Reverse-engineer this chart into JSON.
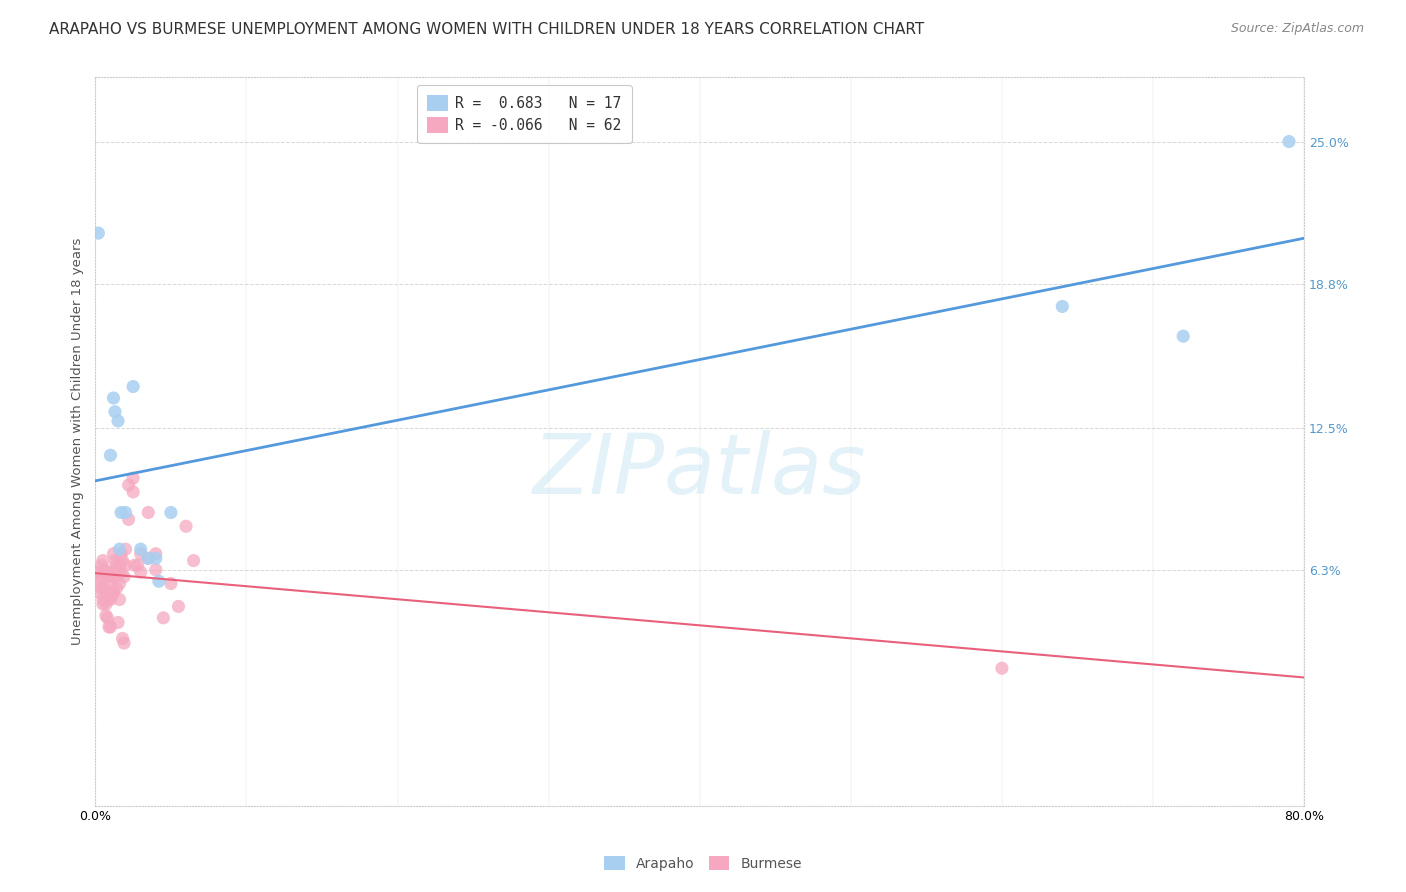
{
  "title": "ARAPAHO VS BURMESE UNEMPLOYMENT AMONG WOMEN WITH CHILDREN UNDER 18 YEARS CORRELATION CHART",
  "source": "Source: ZipAtlas.com",
  "ylabel": "Unemployment Among Women with Children Under 18 years",
  "xlim": [
    0.0,
    0.8
  ],
  "ylim": [
    -0.04,
    0.278
  ],
  "yticks": [
    0.063,
    0.125,
    0.188,
    0.25
  ],
  "ytick_labels": [
    "6.3%",
    "12.5%",
    "18.8%",
    "25.0%"
  ],
  "legend_line1": "R =  0.683   N = 17",
  "legend_line2": "R = -0.066   N = 62",
  "arapaho_color": "#a8cff0",
  "burmese_color": "#f5a8c0",
  "arapaho_line_color": "#5599dd",
  "burmese_line_color": "#e8607a",
  "watermark": "ZIPatlas",
  "arapaho_points": [
    [
      0.002,
      0.21
    ],
    [
      0.01,
      0.113
    ],
    [
      0.012,
      0.138
    ],
    [
      0.013,
      0.132
    ],
    [
      0.015,
      0.128
    ],
    [
      0.016,
      0.072
    ],
    [
      0.017,
      0.088
    ],
    [
      0.02,
      0.088
    ],
    [
      0.025,
      0.143
    ],
    [
      0.03,
      0.072
    ],
    [
      0.035,
      0.068
    ],
    [
      0.04,
      0.068
    ],
    [
      0.042,
      0.058
    ],
    [
      0.05,
      0.088
    ],
    [
      0.64,
      0.178
    ],
    [
      0.72,
      0.165
    ],
    [
      0.79,
      0.25
    ]
  ],
  "burmese_points": [
    [
      0.001,
      0.062
    ],
    [
      0.002,
      0.06
    ],
    [
      0.003,
      0.058
    ],
    [
      0.003,
      0.053
    ],
    [
      0.004,
      0.065
    ],
    [
      0.004,
      0.055
    ],
    [
      0.005,
      0.067
    ],
    [
      0.005,
      0.05
    ],
    [
      0.005,
      0.048
    ],
    [
      0.006,
      0.063
    ],
    [
      0.006,
      0.055
    ],
    [
      0.007,
      0.062
    ],
    [
      0.007,
      0.048
    ],
    [
      0.007,
      0.043
    ],
    [
      0.008,
      0.06
    ],
    [
      0.008,
      0.05
    ],
    [
      0.008,
      0.042
    ],
    [
      0.009,
      0.057
    ],
    [
      0.009,
      0.038
    ],
    [
      0.01,
      0.062
    ],
    [
      0.01,
      0.05
    ],
    [
      0.01,
      0.038
    ],
    [
      0.011,
      0.06
    ],
    [
      0.011,
      0.052
    ],
    [
      0.012,
      0.07
    ],
    [
      0.012,
      0.062
    ],
    [
      0.012,
      0.053
    ],
    [
      0.013,
      0.067
    ],
    [
      0.013,
      0.06
    ],
    [
      0.014,
      0.065
    ],
    [
      0.014,
      0.055
    ],
    [
      0.015,
      0.063
    ],
    [
      0.015,
      0.04
    ],
    [
      0.016,
      0.065
    ],
    [
      0.016,
      0.057
    ],
    [
      0.016,
      0.05
    ],
    [
      0.017,
      0.07
    ],
    [
      0.017,
      0.062
    ],
    [
      0.018,
      0.067
    ],
    [
      0.018,
      0.033
    ],
    [
      0.019,
      0.06
    ],
    [
      0.019,
      0.031
    ],
    [
      0.02,
      0.072
    ],
    [
      0.02,
      0.065
    ],
    [
      0.022,
      0.1
    ],
    [
      0.022,
      0.085
    ],
    [
      0.025,
      0.103
    ],
    [
      0.025,
      0.097
    ],
    [
      0.026,
      0.065
    ],
    [
      0.028,
      0.065
    ],
    [
      0.03,
      0.07
    ],
    [
      0.03,
      0.062
    ],
    [
      0.035,
      0.088
    ],
    [
      0.035,
      0.068
    ],
    [
      0.04,
      0.07
    ],
    [
      0.04,
      0.063
    ],
    [
      0.045,
      0.042
    ],
    [
      0.05,
      0.057
    ],
    [
      0.055,
      0.047
    ],
    [
      0.06,
      0.082
    ],
    [
      0.065,
      0.067
    ],
    [
      0.6,
      0.02
    ]
  ],
  "background_color": "#ffffff",
  "grid_color": "#d8d8d8",
  "title_fontsize": 11,
  "axis_label_fontsize": 9.5,
  "tick_fontsize": 9,
  "marker_size": 90
}
